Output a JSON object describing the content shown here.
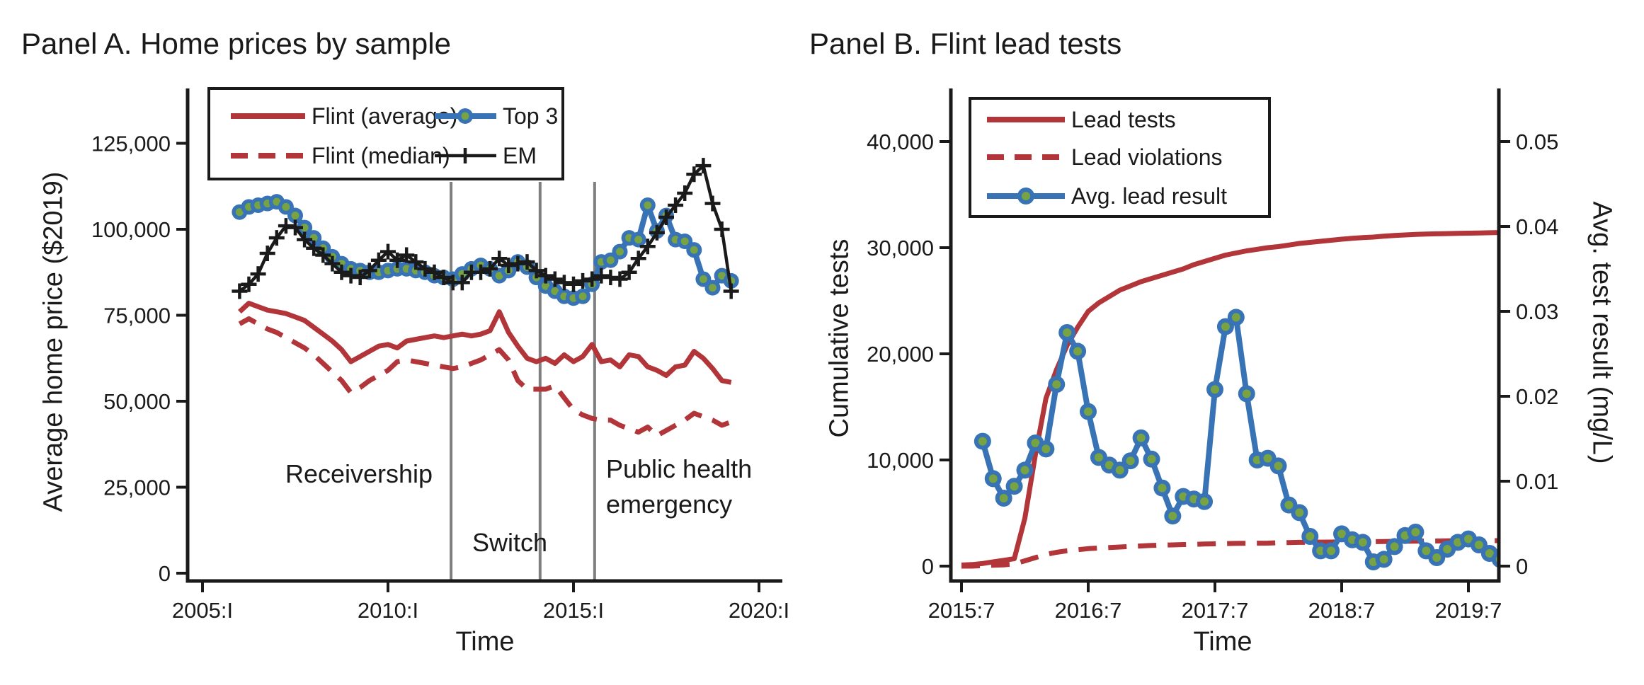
{
  "colors": {
    "red": "#b23539",
    "blue": "#3873b5",
    "marker_green": "#77a343",
    "black_series": "#1a1a1a",
    "event_line_gray": "#7f7f7f",
    "axis_and_text": "#1a1a1a",
    "background": "#ffffff"
  },
  "chart_data": [
    {
      "panel": "A",
      "type": "line",
      "title": "Panel A. Home prices by sample",
      "xlabel": "Time",
      "ylabel": "Average home price ($2019)",
      "grid": false,
      "legend_position": "top-left-inside",
      "xlim": [
        2004.6,
        2020.6
      ],
      "ylim": [
        0,
        140000
      ],
      "x_ticks": [
        {
          "t": 2005.0,
          "label": "2005:I"
        },
        {
          "t": 2010.0,
          "label": "2010:I"
        },
        {
          "t": 2015.0,
          "label": "2015:I"
        },
        {
          "t": 2020.0,
          "label": "2020:I"
        }
      ],
      "y_ticks": [
        {
          "v": 0,
          "label": "0"
        },
        {
          "v": 25000,
          "label": "25,000"
        },
        {
          "v": 50000,
          "label": "50,000"
        },
        {
          "v": 75000,
          "label": "75,000"
        },
        {
          "v": 100000,
          "label": "100,000"
        },
        {
          "v": 125000,
          "label": "125,000"
        }
      ],
      "x_start": 2006.0,
      "x_step": 0.25,
      "events": [
        {
          "t": 2011.7,
          "label": "Receivership"
        },
        {
          "t": 2014.1,
          "label": "Switch"
        },
        {
          "t": 2015.57,
          "label": "Public health emergency"
        }
      ],
      "series": [
        {
          "name": "Flint (average)",
          "style": "solid",
          "color": "#b23539",
          "values": [
            76000,
            78500,
            77500,
            76500,
            76000,
            75500,
            74500,
            73500,
            71500,
            69500,
            67500,
            65000,
            61500,
            63000,
            64500,
            66000,
            66500,
            65500,
            67500,
            68000,
            68500,
            69000,
            68500,
            69000,
            69500,
            69000,
            69500,
            70500,
            76000,
            70000,
            66000,
            62500,
            61500,
            62500,
            61000,
            63500,
            61500,
            63000,
            66500,
            61500,
            62000,
            60000,
            63500,
            63000,
            60000,
            59000,
            57500,
            60000,
            60500,
            64500,
            62500,
            59500,
            56000,
            55500
          ]
        },
        {
          "name": "Flint (median)",
          "style": "dashed",
          "color": "#b23539",
          "values": [
            72500,
            74000,
            72500,
            71000,
            70000,
            68500,
            67000,
            65500,
            63500,
            61000,
            58500,
            56000,
            52500,
            54000,
            56000,
            57500,
            59000,
            61500,
            62000,
            61500,
            61000,
            60500,
            60000,
            59500,
            60000,
            61000,
            62000,
            63500,
            65000,
            62000,
            56000,
            53500,
            53500,
            53500,
            54500,
            51000,
            47500,
            46000,
            45000,
            44500,
            44500,
            43000,
            42000,
            41000,
            42500,
            40000,
            41500,
            43000,
            44500,
            46500,
            45500,
            44500,
            43000,
            44000
          ]
        },
        {
          "name": "Top 3",
          "style": "marker-line",
          "color": "#3873b5",
          "marker_fill": "#77a343",
          "values": [
            105000,
            106500,
            107000,
            107500,
            108000,
            106500,
            104000,
            100500,
            97500,
            94500,
            92000,
            90000,
            88500,
            88000,
            87500,
            87500,
            88000,
            88500,
            88500,
            88000,
            87500,
            86500,
            86000,
            85500,
            87000,
            88500,
            89500,
            88500,
            86500,
            88000,
            90500,
            89000,
            86000,
            83500,
            82000,
            80500,
            80000,
            80500,
            84000,
            90500,
            91000,
            93500,
            97500,
            97000,
            107000,
            99500,
            104000,
            97000,
            96500,
            94000,
            85500,
            83000,
            86500,
            85000
          ]
        },
        {
          "name": "EM",
          "style": "plus-line",
          "color": "#1a1a1a",
          "values": [
            82000,
            84000,
            87000,
            93000,
            97500,
            101000,
            100500,
            97000,
            94500,
            92500,
            90000,
            87500,
            86500,
            86000,
            88000,
            91000,
            93500,
            91000,
            92500,
            90500,
            88500,
            87500,
            86000,
            84500,
            84500,
            87500,
            87500,
            88500,
            91500,
            89500,
            90000,
            90500,
            88000,
            86500,
            85500,
            84500,
            84000,
            85000,
            85500,
            86500,
            86000,
            85500,
            87500,
            91500,
            95000,
            99000,
            103500,
            107000,
            110500,
            116000,
            118500,
            107500,
            100000,
            82000
          ]
        }
      ]
    },
    {
      "panel": "B",
      "type": "line",
      "title": "Panel B. Flint lead tests",
      "xlabel": "Time",
      "ylabel_left": "Cumulative tests",
      "ylabel_right": "Avg. test result (mg/L)",
      "grid": false,
      "legend_position": "top-left-inside",
      "xlim": [
        2015.42,
        2019.8
      ],
      "ylim_left": [
        0,
        45000
      ],
      "ylim_right": [
        0,
        0.0563
      ],
      "x_ticks": [
        {
          "t": 2015.5,
          "label": "2015:7"
        },
        {
          "t": 2016.5,
          "label": "2016:7"
        },
        {
          "t": 2017.5,
          "label": "2017:7"
        },
        {
          "t": 2018.5,
          "label": "2018:7"
        },
        {
          "t": 2019.5,
          "label": "2019:7"
        }
      ],
      "y_ticks_left": [
        {
          "v": 0,
          "label": "0"
        },
        {
          "v": 10000,
          "label": "10,000"
        },
        {
          "v": 20000,
          "label": "20,000"
        },
        {
          "v": 30000,
          "label": "30,000"
        },
        {
          "v": 40000,
          "label": "40,000"
        }
      ],
      "y_ticks_right": [
        {
          "v": 0,
          "label": "0"
        },
        {
          "v": 0.01,
          "label": "0.01"
        },
        {
          "v": 0.02,
          "label": "0.02"
        },
        {
          "v": 0.03,
          "label": "0.03"
        },
        {
          "v": 0.04,
          "label": "0.04"
        },
        {
          "v": 0.05,
          "label": "0.05"
        }
      ],
      "x_step": 0.0833333,
      "series": [
        {
          "name": "Lead tests",
          "axis": "left",
          "style": "solid",
          "color": "#b23539",
          "x_start": 2015.5,
          "values": [
            100,
            150,
            250,
            400,
            550,
            700,
            4500,
            10500,
            15800,
            18500,
            20800,
            22500,
            24000,
            24800,
            25400,
            26000,
            26400,
            26800,
            27100,
            27400,
            27700,
            28000,
            28400,
            28700,
            29000,
            29300,
            29500,
            29700,
            29850,
            30000,
            30100,
            30250,
            30400,
            30500,
            30600,
            30700,
            30800,
            30880,
            30950,
            31000,
            31080,
            31150,
            31200,
            31250,
            31280,
            31310,
            31330,
            31350,
            31370,
            31390,
            31410,
            31430
          ]
        },
        {
          "name": "Lead violations",
          "axis": "left",
          "style": "dashed",
          "color": "#b23539",
          "x_start": 2015.5,
          "values": [
            0,
            0,
            50,
            80,
            120,
            200,
            500,
            800,
            1100,
            1300,
            1450,
            1550,
            1650,
            1700,
            1750,
            1800,
            1850,
            1900,
            1950,
            1980,
            2000,
            2030,
            2050,
            2080,
            2100,
            2120,
            2140,
            2150,
            2160,
            2170,
            2200,
            2220,
            2240,
            2250,
            2260,
            2270,
            2280,
            2290,
            2300,
            2310,
            2320,
            2330,
            2340,
            2350,
            2360,
            2370,
            2380,
            2390,
            2400,
            2400,
            2400,
            2400
          ]
        },
        {
          "name": "Avg. lead result",
          "axis": "right",
          "style": "marker-line",
          "color": "#3873b5",
          "marker_fill": "#77a343",
          "x_start": 2015.6666667,
          "values": [
            0.0147,
            0.0103,
            0.008,
            0.0094,
            0.0113,
            0.0145,
            0.0138,
            0.0214,
            0.0275,
            0.0253,
            0.0182,
            0.0128,
            0.0119,
            0.0113,
            0.0124,
            0.0151,
            0.0126,
            0.0092,
            0.0059,
            0.0082,
            0.0079,
            0.0076,
            0.0208,
            0.0282,
            0.0293,
            0.0203,
            0.0125,
            0.0127,
            0.0118,
            0.0072,
            0.0063,
            0.0035,
            0.0018,
            0.0018,
            0.0038,
            0.0031,
            0.0028,
            0.0005,
            0.0008,
            0.0023,
            0.0036,
            0.004,
            0.0018,
            0.001,
            0.002,
            0.0028,
            0.0032,
            0.0025,
            0.0015,
            0.0008
          ]
        }
      ]
    }
  ]
}
